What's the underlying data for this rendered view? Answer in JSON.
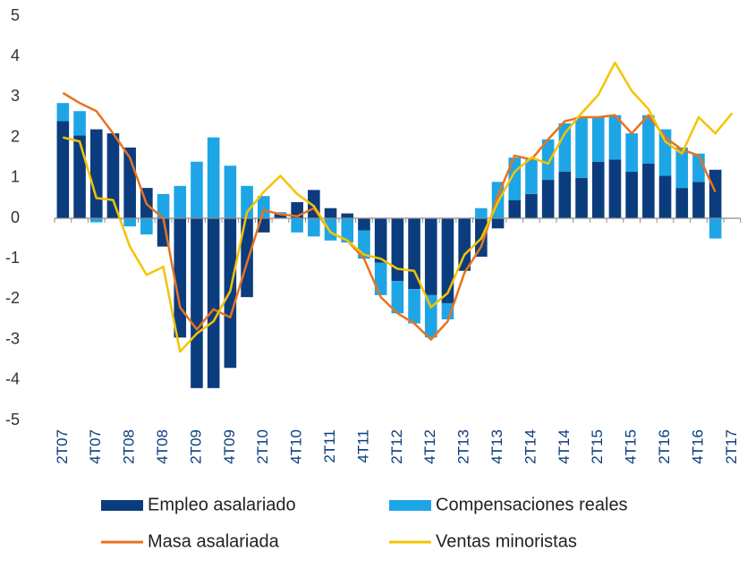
{
  "chart_data": {
    "type": "bar",
    "categories": [
      "2T07",
      null,
      "4T07",
      null,
      "2T08",
      null,
      "4T08",
      null,
      "2T09",
      null,
      "4T09",
      null,
      "2T10",
      null,
      "4T10",
      null,
      "2T11",
      null,
      "4T11",
      null,
      "2T12",
      null,
      "4T12",
      null,
      "2T13",
      null,
      "4T13",
      null,
      "2T14",
      null,
      "4T14",
      null,
      "2T15",
      null,
      "4T15",
      null,
      "2T16",
      null,
      "4T16",
      null,
      "2T17"
    ],
    "series": [
      {
        "name": "Empleo asalariado",
        "color": "#0b3c7d",
        "kind": "bar",
        "values": [
          2.4,
          2.05,
          2.2,
          2.1,
          1.75,
          0.75,
          -0.7,
          -2.95,
          -4.2,
          -4.2,
          -3.7,
          -1.95,
          -0.35,
          0.1,
          0.4,
          0.7,
          0.25,
          0.12,
          -0.3,
          -1.1,
          -1.55,
          -1.75,
          -1.9,
          -2.1,
          -1.3,
          -0.95,
          -0.25,
          0.45,
          0.6,
          0.95,
          1.15,
          1.0,
          1.4,
          1.45,
          1.15,
          1.35,
          1.05,
          0.75,
          0.9,
          1.2,
          null
        ]
      },
      {
        "name": "Compensaciones reales",
        "color": "#1ea5e6",
        "kind": "bar",
        "values": [
          0.45,
          0.6,
          -0.1,
          0.0,
          -0.2,
          -0.4,
          0.6,
          0.8,
          1.4,
          2.0,
          1.3,
          0.8,
          0.55,
          0.05,
          -0.35,
          -0.45,
          -0.55,
          -0.6,
          -0.7,
          -0.8,
          -0.8,
          -0.85,
          -1.05,
          -0.4,
          0.0,
          0.25,
          0.9,
          1.05,
          0.85,
          1.0,
          1.2,
          1.5,
          1.1,
          1.1,
          0.95,
          1.2,
          1.15,
          1.0,
          0.7,
          -0.5,
          null
        ]
      },
      {
        "name": "Masa asalariada",
        "color": "#e8731f",
        "kind": "line",
        "values": [
          3.1,
          2.85,
          2.65,
          2.1,
          1.5,
          0.35,
          0.0,
          -2.2,
          -2.75,
          -2.25,
          -2.45,
          -1.1,
          0.2,
          0.1,
          0.05,
          0.25,
          -0.35,
          -0.55,
          -1.0,
          -1.95,
          -2.35,
          -2.6,
          -3.0,
          -2.55,
          -1.35,
          -0.7,
          0.55,
          1.55,
          1.45,
          1.95,
          2.4,
          2.5,
          2.5,
          2.55,
          2.1,
          2.55,
          2.0,
          1.7,
          1.55,
          0.65,
          null
        ]
      },
      {
        "name": "Ventas minoristas",
        "color": "#f5c300",
        "kind": "line",
        "values": [
          2.0,
          1.9,
          0.5,
          0.45,
          -0.7,
          -1.4,
          -1.2,
          -3.3,
          -2.85,
          -2.55,
          -1.8,
          0.15,
          0.65,
          1.05,
          0.6,
          0.3,
          -0.35,
          -0.55,
          -0.9,
          -1.0,
          -1.25,
          -1.3,
          -2.2,
          -1.85,
          -0.9,
          -0.5,
          0.4,
          1.15,
          1.5,
          1.35,
          2.1,
          2.6,
          3.05,
          3.85,
          3.15,
          2.7,
          1.9,
          1.6,
          2.5,
          2.1,
          2.6
        ]
      }
    ],
    "ylim": [
      -5,
      5
    ],
    "yticks": [
      -5,
      -4,
      -3,
      -2,
      -1,
      0,
      1,
      2,
      3,
      4,
      5
    ]
  }
}
